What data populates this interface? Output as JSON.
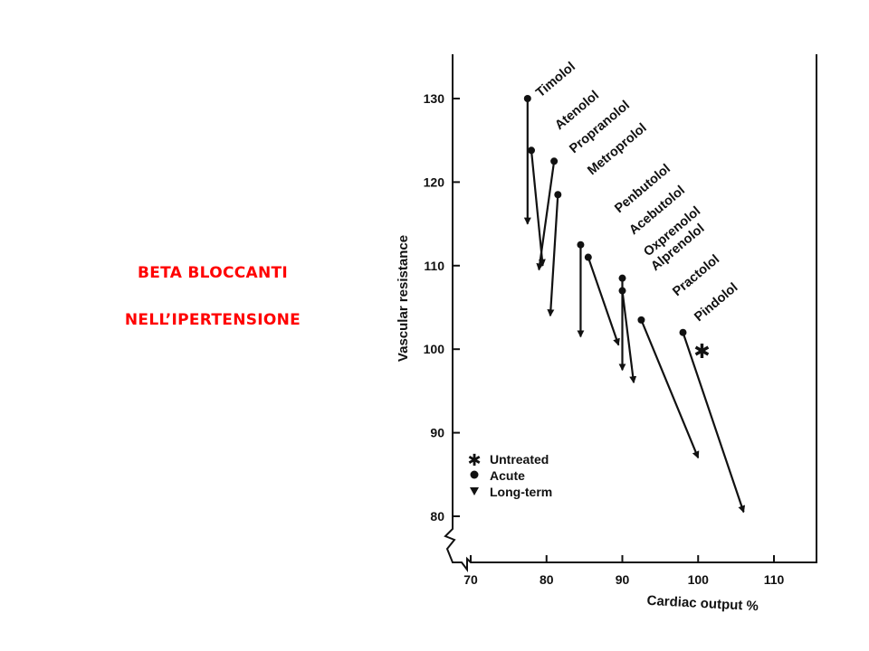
{
  "slide": {
    "title_line1": "BETA BLOCCANTI",
    "title_line2": "NELL’IPERTENSIONE"
  },
  "colors": {
    "title": "#ff0000",
    "ink": "#111111"
  },
  "chart_data": {
    "type": "scatter",
    "xlabel": "Cardiac output %",
    "ylabel": "Vascular resistance",
    "xlim": [
      67,
      112
    ],
    "ylim": [
      78,
      135
    ],
    "x_ticks": [
      70,
      80,
      90,
      100,
      110
    ],
    "y_ticks": [
      80,
      90,
      100,
      110,
      120,
      130
    ],
    "grid": false,
    "legend": {
      "placement": "bottom-left",
      "items": [
        {
          "marker": "star",
          "label": "Untreated"
        },
        {
          "marker": "circle",
          "label": "Acute"
        },
        {
          "marker": "triangle-down",
          "label": "Long-term"
        }
      ]
    },
    "drugs": [
      {
        "name": "Timolol",
        "acute": [
          77.5,
          130.0
        ],
        "long_term": [
          77.5,
          115.0
        ]
      },
      {
        "name": "Atenolol",
        "acute": [
          78.0,
          123.8
        ],
        "long_term": [
          79.5,
          110.0
        ]
      },
      {
        "name": "Propranolol",
        "acute": [
          81.0,
          122.5
        ],
        "long_term": [
          79.0,
          109.5
        ]
      },
      {
        "name": "Metroprolol",
        "acute": [
          81.5,
          118.5
        ],
        "long_term": [
          80.5,
          104.0
        ]
      },
      {
        "name": "Penbutolol",
        "acute": [
          84.5,
          112.5
        ],
        "long_term": [
          84.5,
          101.5
        ]
      },
      {
        "name": "Acebutolol",
        "acute": [
          85.5,
          111.0
        ],
        "long_term": [
          89.5,
          100.5
        ]
      },
      {
        "name": "Oxprenolol",
        "acute": [
          90.0,
          108.5
        ],
        "long_term": [
          90.0,
          97.5
        ]
      },
      {
        "name": "Alprenolol",
        "acute": [
          90.0,
          107.0
        ],
        "long_term": [
          91.5,
          96.0
        ]
      },
      {
        "name": "Practolol",
        "acute": [
          92.5,
          103.5
        ],
        "long_term": [
          100.0,
          87.0
        ]
      },
      {
        "name": "Pindolol",
        "acute": [
          98.0,
          102.0
        ],
        "long_term": [
          106.0,
          80.5
        ]
      }
    ],
    "untreated": [
      100.5,
      99.8
    ]
  }
}
